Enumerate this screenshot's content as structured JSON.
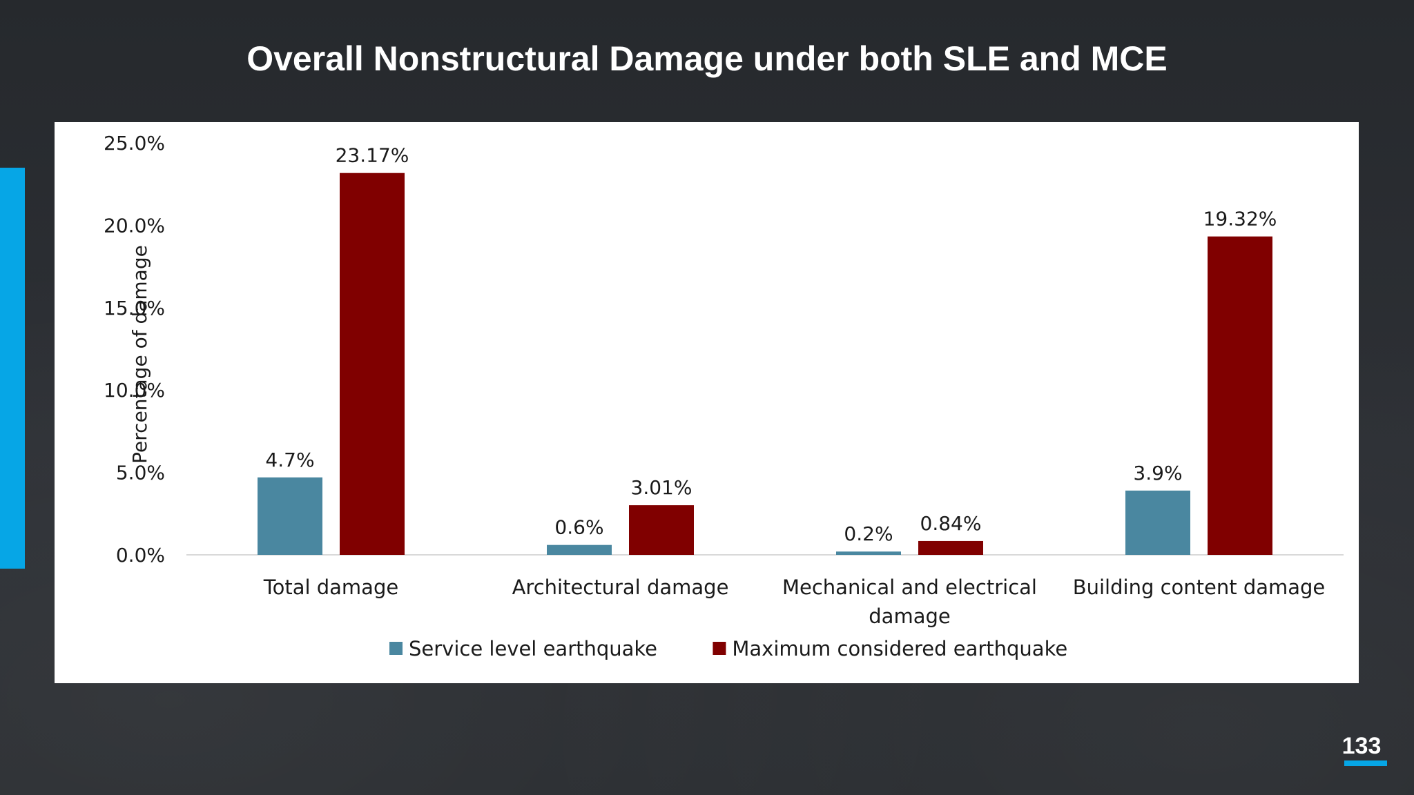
{
  "slide": {
    "title": "Overall Nonstructural Damage under both SLE and MCE",
    "page_number": "133",
    "accent_color": "#06a6e6"
  },
  "chart_data": {
    "type": "bar",
    "title": "",
    "xlabel": "",
    "ylabel": "Percentage of damage",
    "ylim": [
      0,
      25
    ],
    "y_ticks": [
      "0.0%",
      "5.0%",
      "10.0%",
      "15.0%",
      "20.0%",
      "25.0%"
    ],
    "categories": [
      [
        "Total damage"
      ],
      [
        "Architectural damage"
      ],
      [
        "Mechanical and electrical",
        "damage"
      ],
      [
        "Building content damage"
      ]
    ],
    "series": [
      {
        "name": "Service level earthquake",
        "color": "#4a87a0",
        "values": [
          4.7,
          0.6,
          0.2,
          3.9
        ],
        "labels": [
          "4.7%",
          "0.6%",
          "0.2%",
          "3.9%"
        ]
      },
      {
        "name": "Maximum considered earthquake",
        "color": "#800000",
        "values": [
          23.17,
          3.01,
          0.84,
          19.32
        ],
        "labels": [
          "23.17%",
          "3.01%",
          "0.84%",
          "19.32%"
        ]
      }
    ],
    "grid": false,
    "legend_position": "bottom"
  }
}
